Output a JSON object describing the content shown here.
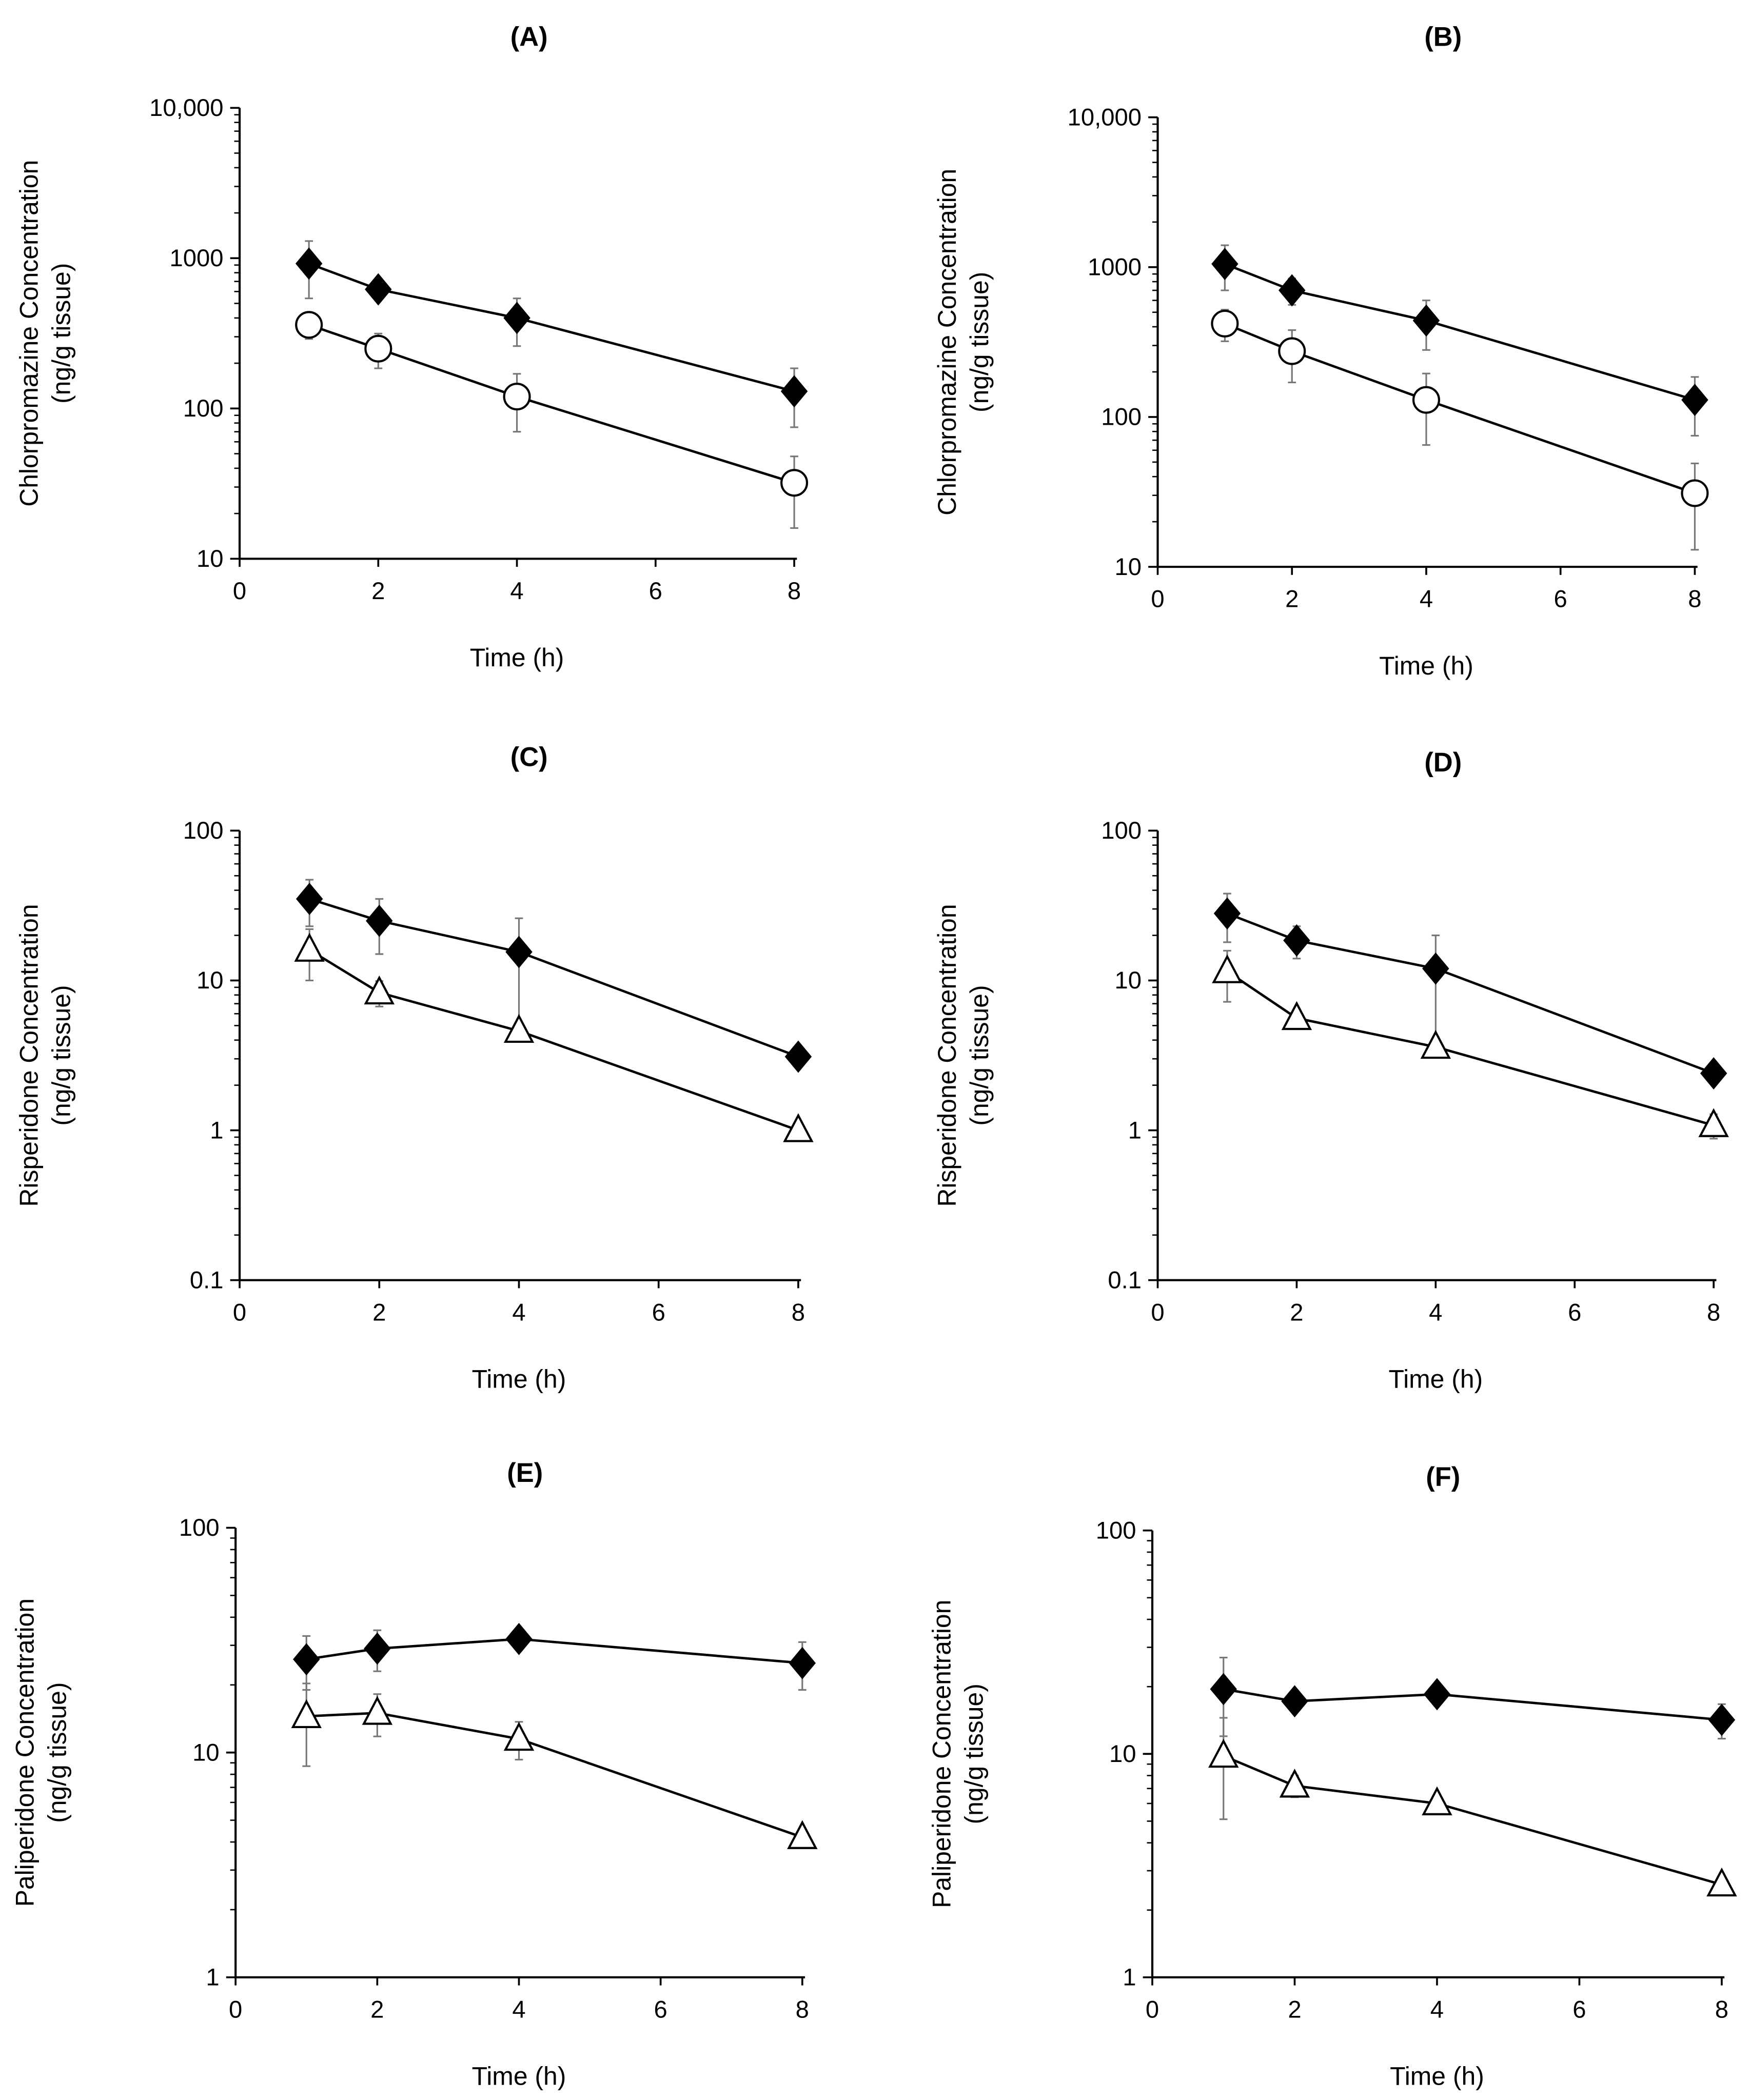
{
  "chart_data": [
    {
      "type": "line",
      "title": "(A)",
      "xlabel": "Time (h)",
      "ylabel": [
        "Chlorpromazine Concentration",
        "(ng/g tissue)"
      ],
      "yscale": "log",
      "ylim": [
        10,
        10000
      ],
      "xlim": [
        0,
        8
      ],
      "xticks": [
        "0",
        "2",
        "4",
        "6",
        "8"
      ],
      "yticks": [
        "10",
        "100",
        "1000",
        "10,000"
      ],
      "x": [
        1,
        2,
        4,
        8
      ],
      "series": [
        {
          "name": "filled-diamond",
          "marker": "diamond",
          "values": [
            920,
            620,
            400,
            130
          ],
          "err": [
            380,
            70,
            140,
            55
          ]
        },
        {
          "name": "open-circle",
          "marker": "circle",
          "values": [
            360,
            250,
            120,
            32
          ],
          "err": [
            70,
            65,
            50,
            16
          ]
        }
      ]
    },
    {
      "type": "line",
      "title": "(B)",
      "xlabel": "Time (h)",
      "ylabel": [
        "Chlorpromazine Concentration",
        "(ng/g tissue)"
      ],
      "yscale": "log",
      "ylim": [
        10,
        10000
      ],
      "xlim": [
        0,
        8
      ],
      "xticks": [
        "0",
        "2",
        "4",
        "6",
        "8"
      ],
      "yticks": [
        "10",
        "100",
        "1000",
        "10,000"
      ],
      "x": [
        1,
        2,
        4,
        8
      ],
      "series": [
        {
          "name": "filled-diamond",
          "marker": "diamond",
          "values": [
            1050,
            700,
            440,
            130
          ],
          "err": [
            350,
            140,
            160,
            55
          ]
        },
        {
          "name": "open-circle",
          "marker": "circle",
          "values": [
            420,
            275,
            130,
            31
          ],
          "err": [
            100,
            105,
            65,
            18
          ]
        }
      ]
    },
    {
      "type": "line",
      "title": "(C)",
      "xlabel": "Time (h)",
      "ylabel": [
        "Risperidone Concentration",
        "(ng/g tissue)"
      ],
      "yscale": "log",
      "ylim": [
        0.1,
        100
      ],
      "xlim": [
        0,
        8
      ],
      "xticks": [
        "0",
        "2",
        "4",
        "6",
        "8"
      ],
      "yticks": [
        "0.1",
        "1",
        "10",
        "100"
      ],
      "x": [
        1,
        2,
        4,
        8
      ],
      "series": [
        {
          "name": "filled-diamond",
          "marker": "diamond",
          "values": [
            35,
            25,
            15.5,
            3.1
          ],
          "err": [
            12,
            10,
            10.5,
            0.2
          ]
        },
        {
          "name": "open-triangle",
          "marker": "triangle",
          "values": [
            16,
            8.3,
            4.6,
            1.0
          ],
          "err": [
            6,
            1.6,
            0.3,
            0.05
          ]
        }
      ]
    },
    {
      "type": "line",
      "title": "(D)",
      "xlabel": "Time (h)",
      "ylabel": [
        "Risperidone Concentration",
        "(ng/g tissue)"
      ],
      "yscale": "log",
      "ylim": [
        0.1,
        100
      ],
      "xlim": [
        0,
        8
      ],
      "xticks": [
        "0",
        "2",
        "4",
        "6",
        "8"
      ],
      "yticks": [
        "0.1",
        "1",
        "10",
        "100"
      ],
      "x": [
        1,
        2,
        4,
        8
      ],
      "series": [
        {
          "name": "filled-diamond",
          "marker": "diamond",
          "values": [
            28,
            18.5,
            12,
            2.4
          ],
          "err": [
            10,
            4.5,
            8,
            0.2
          ]
        },
        {
          "name": "open-triangle",
          "marker": "triangle",
          "values": [
            11.5,
            5.6,
            3.6,
            1.08
          ],
          "err": [
            4.3,
            0.4,
            0.3,
            0.2
          ]
        }
      ]
    },
    {
      "type": "line",
      "title": "(E)",
      "xlabel": "Time (h)",
      "ylabel": [
        "Paliperidone Concentration",
        "(ng/g tissue)"
      ],
      "yscale": "log",
      "ylim": [
        1,
        100
      ],
      "xlim": [
        0,
        8
      ],
      "xticks": [
        "0",
        "2",
        "4",
        "6",
        "8"
      ],
      "yticks": [
        "1",
        "10",
        "100"
      ],
      "x": [
        1,
        2,
        4,
        8
      ],
      "series": [
        {
          "name": "filled-diamond",
          "marker": "diamond",
          "values": [
            26,
            29,
            32,
            25
          ],
          "err": [
            7,
            6,
            1,
            6
          ]
        },
        {
          "name": "open-triangle",
          "marker": "triangle",
          "values": [
            14.5,
            15,
            11.5,
            4.2
          ],
          "err": [
            5.8,
            3.2,
            2.2,
            0.2
          ]
        }
      ]
    },
    {
      "type": "line",
      "title": "(F)",
      "xlabel": "Time (h)",
      "ylabel": [
        "Paliperidone Concentration",
        "(ng/g tissue)"
      ],
      "yscale": "log",
      "ylim": [
        1,
        100
      ],
      "xlim": [
        0,
        8
      ],
      "xticks": [
        "0",
        "2",
        "4",
        "6",
        "8"
      ],
      "yticks": [
        "1",
        "10",
        "100"
      ],
      "x": [
        1,
        2,
        4,
        8
      ],
      "series": [
        {
          "name": "filled-diamond",
          "marker": "diamond",
          "values": [
            19.5,
            17.2,
            18.5,
            14.2
          ],
          "err": [
            7.5,
            0.8,
            0.8,
            2.5
          ]
        },
        {
          "name": "open-triangle",
          "marker": "triangle",
          "values": [
            9.8,
            7.2,
            6,
            2.6
          ],
          "err": [
            4.7,
            0.8,
            0.3,
            0.2
          ]
        }
      ]
    }
  ]
}
